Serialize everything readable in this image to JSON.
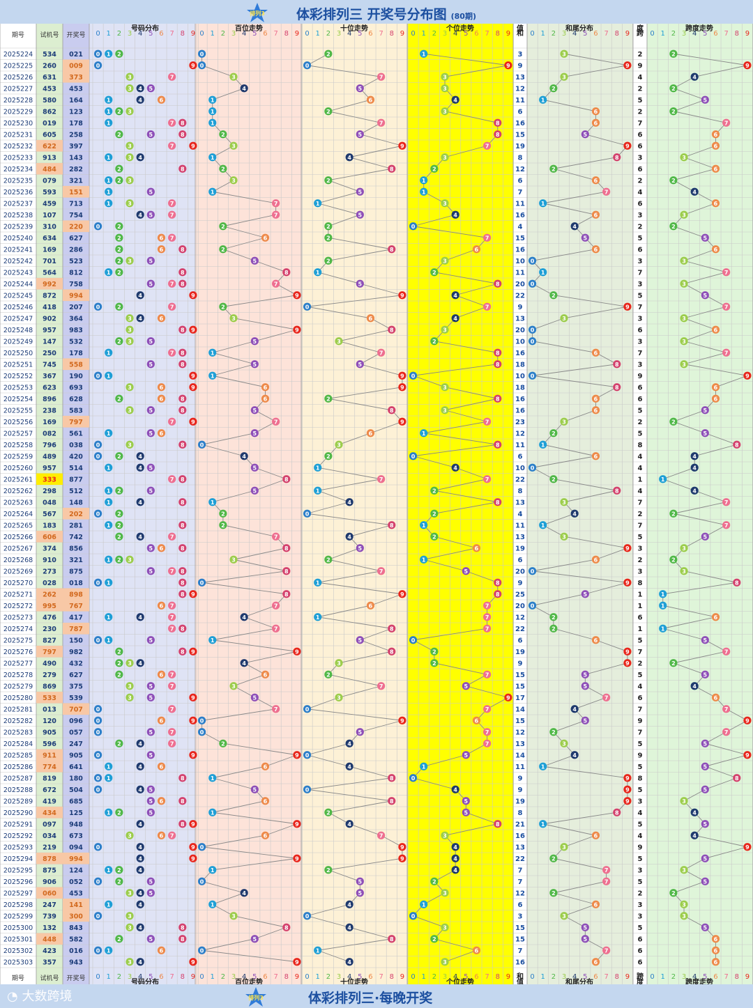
{
  "title": "体彩排列三 开奖号分布图",
  "subtitle": "(80期)",
  "footer_title": "体彩排列三·每晚开奖",
  "watermark": "大数跨境",
  "headers": {
    "issue": "期号",
    "test": "试机号",
    "draw": "开奖号",
    "dist": "号码分布",
    "hundreds": "百位走势",
    "tens": "十位走势",
    "units": "个位走势",
    "sum_a": "和",
    "sum_b": "值",
    "tail": "和尾分布",
    "span_a": "跨",
    "span_b": "度",
    "span": "跨度走势"
  },
  "colors": {
    "panel_dist": "#dfe3f5",
    "panel_hundreds": "#fde3d9",
    "panel_tens": "#fdf1d6",
    "panel_units": "#ffff00",
    "panel_tail": "#e5eedc",
    "panel_span": "#dff5d9",
    "issue_bg": "#ffffff",
    "test_bg": "#dceed0",
    "draw_bg": "#c9ccef",
    "highlight": "#f8c8a6",
    "text_blue": "#1c4fa0"
  },
  "ball_colors": [
    "#2c7fc9",
    "#1e9fd6",
    "#50b848",
    "#9ccd4c",
    "#1f3a6e",
    "#8e4fb8",
    "#ee8a4a",
    "#ee6f90",
    "#d4426e",
    "#e8261c"
  ],
  "chart_data": {
    "type": "table",
    "periods": 80,
    "rows": [
      {
        "issue": "2025224",
        "test": "534",
        "draw": "021",
        "sum": 3,
        "span": 2,
        "hl": ""
      },
      {
        "issue": "2025225",
        "test": "260",
        "draw": "009",
        "sum": 9,
        "span": 9,
        "hl": "draw"
      },
      {
        "issue": "2025226",
        "test": "631",
        "draw": "373",
        "sum": 13,
        "span": 4,
        "hl": "draw"
      },
      {
        "issue": "2025227",
        "test": "453",
        "draw": "453",
        "sum": 12,
        "span": 2,
        "hl": ""
      },
      {
        "issue": "2025228",
        "test": "580",
        "draw": "164",
        "sum": 11,
        "span": 5,
        "hl": ""
      },
      {
        "issue": "2025229",
        "test": "862",
        "draw": "123",
        "sum": 6,
        "span": 2,
        "hl": ""
      },
      {
        "issue": "2025230",
        "test": "019",
        "draw": "178",
        "sum": 16,
        "span": 7,
        "hl": ""
      },
      {
        "issue": "2025231",
        "test": "605",
        "draw": "258",
        "sum": 15,
        "span": 6,
        "hl": ""
      },
      {
        "issue": "2025232",
        "test": "622",
        "draw": "397",
        "sum": 19,
        "span": 6,
        "hl": "test"
      },
      {
        "issue": "2025233",
        "test": "913",
        "draw": "143",
        "sum": 8,
        "span": 3,
        "hl": ""
      },
      {
        "issue": "2025234",
        "test": "484",
        "draw": "282",
        "sum": 12,
        "span": 6,
        "hl": "test"
      },
      {
        "issue": "2025235",
        "test": "079",
        "draw": "321",
        "sum": 6,
        "span": 2,
        "hl": ""
      },
      {
        "issue": "2025236",
        "test": "593",
        "draw": "151",
        "sum": 7,
        "span": 4,
        "hl": "draw"
      },
      {
        "issue": "2025237",
        "test": "459",
        "draw": "713",
        "sum": 11,
        "span": 6,
        "hl": ""
      },
      {
        "issue": "2025238",
        "test": "107",
        "draw": "754",
        "sum": 16,
        "span": 3,
        "hl": ""
      },
      {
        "issue": "2025239",
        "test": "310",
        "draw": "220",
        "sum": 4,
        "span": 2,
        "hl": "draw"
      },
      {
        "issue": "2025240",
        "test": "634",
        "draw": "627",
        "sum": 15,
        "span": 5,
        "hl": ""
      },
      {
        "issue": "2025241",
        "test": "169",
        "draw": "286",
        "sum": 16,
        "span": 6,
        "hl": ""
      },
      {
        "issue": "2025242",
        "test": "701",
        "draw": "523",
        "sum": 10,
        "span": 3,
        "hl": ""
      },
      {
        "issue": "2025243",
        "test": "564",
        "draw": "812",
        "sum": 11,
        "span": 7,
        "hl": ""
      },
      {
        "issue": "2025244",
        "test": "992",
        "draw": "758",
        "sum": 20,
        "span": 3,
        "hl": "test"
      },
      {
        "issue": "2025245",
        "test": "872",
        "draw": "994",
        "sum": 22,
        "span": 5,
        "hl": "draw"
      },
      {
        "issue": "2025246",
        "test": "418",
        "draw": "207",
        "sum": 9,
        "span": 7,
        "hl": ""
      },
      {
        "issue": "2025247",
        "test": "902",
        "draw": "364",
        "sum": 13,
        "span": 3,
        "hl": ""
      },
      {
        "issue": "2025248",
        "test": "957",
        "draw": "983",
        "sum": 20,
        "span": 6,
        "hl": ""
      },
      {
        "issue": "2025249",
        "test": "147",
        "draw": "532",
        "sum": 10,
        "span": 3,
        "hl": ""
      },
      {
        "issue": "2025250",
        "test": "250",
        "draw": "178",
        "sum": 16,
        "span": 7,
        "hl": ""
      },
      {
        "issue": "2025251",
        "test": "745",
        "draw": "558",
        "sum": 18,
        "span": 3,
        "hl": "draw"
      },
      {
        "issue": "2025252",
        "test": "367",
        "draw": "190",
        "sum": 10,
        "span": 9,
        "hl": ""
      },
      {
        "issue": "2025253",
        "test": "623",
        "draw": "693",
        "sum": 18,
        "span": 6,
        "hl": ""
      },
      {
        "issue": "2025254",
        "test": "896",
        "draw": "628",
        "sum": 16,
        "span": 6,
        "hl": ""
      },
      {
        "issue": "2025255",
        "test": "238",
        "draw": "583",
        "sum": 16,
        "span": 5,
        "hl": ""
      },
      {
        "issue": "2025256",
        "test": "169",
        "draw": "797",
        "sum": 23,
        "span": 2,
        "hl": "draw"
      },
      {
        "issue": "2025257",
        "test": "082",
        "draw": "561",
        "sum": 12,
        "span": 5,
        "hl": ""
      },
      {
        "issue": "2025258",
        "test": "796",
        "draw": "038",
        "sum": 11,
        "span": 8,
        "hl": ""
      },
      {
        "issue": "2025259",
        "test": "489",
        "draw": "420",
        "sum": 6,
        "span": 4,
        "hl": ""
      },
      {
        "issue": "2025260",
        "test": "957",
        "draw": "514",
        "sum": 10,
        "span": 4,
        "hl": ""
      },
      {
        "issue": "2025261",
        "test": "333",
        "draw": "877",
        "sum": 22,
        "span": 1,
        "hl": "test-yellow"
      },
      {
        "issue": "2025262",
        "test": "298",
        "draw": "512",
        "sum": 8,
        "span": 4,
        "hl": ""
      },
      {
        "issue": "2025263",
        "test": "048",
        "draw": "148",
        "sum": 13,
        "span": 7,
        "hl": ""
      },
      {
        "issue": "2025264",
        "test": "567",
        "draw": "202",
        "sum": 4,
        "span": 2,
        "hl": "draw"
      },
      {
        "issue": "2025265",
        "test": "183",
        "draw": "281",
        "sum": 11,
        "span": 7,
        "hl": ""
      },
      {
        "issue": "2025266",
        "test": "606",
        "draw": "742",
        "sum": 13,
        "span": 5,
        "hl": "test"
      },
      {
        "issue": "2025267",
        "test": "374",
        "draw": "856",
        "sum": 19,
        "span": 3,
        "hl": ""
      },
      {
        "issue": "2025268",
        "test": "910",
        "draw": "321",
        "sum": 6,
        "span": 2,
        "hl": ""
      },
      {
        "issue": "2025269",
        "test": "273",
        "draw": "875",
        "sum": 20,
        "span": 3,
        "hl": ""
      },
      {
        "issue": "2025270",
        "test": "028",
        "draw": "018",
        "sum": 9,
        "span": 8,
        "hl": ""
      },
      {
        "issue": "2025271",
        "test": "262",
        "draw": "898",
        "sum": 25,
        "span": 1,
        "hl": "both"
      },
      {
        "issue": "2025272",
        "test": "995",
        "draw": "767",
        "sum": 20,
        "span": 1,
        "hl": "both"
      },
      {
        "issue": "2025273",
        "test": "476",
        "draw": "417",
        "sum": 12,
        "span": 6,
        "hl": ""
      },
      {
        "issue": "2025274",
        "test": "230",
        "draw": "787",
        "sum": 22,
        "span": 1,
        "hl": "draw"
      },
      {
        "issue": "2025275",
        "test": "827",
        "draw": "150",
        "sum": 6,
        "span": 5,
        "hl": ""
      },
      {
        "issue": "2025276",
        "test": "797",
        "draw": "982",
        "sum": 19,
        "span": 7,
        "hl": "test"
      },
      {
        "issue": "2025277",
        "test": "490",
        "draw": "432",
        "sum": 9,
        "span": 2,
        "hl": ""
      },
      {
        "issue": "2025278",
        "test": "279",
        "draw": "627",
        "sum": 15,
        "span": 5,
        "hl": ""
      },
      {
        "issue": "2025279",
        "test": "869",
        "draw": "375",
        "sum": 15,
        "span": 4,
        "hl": ""
      },
      {
        "issue": "2025280",
        "test": "533",
        "draw": "539",
        "sum": 17,
        "span": 6,
        "hl": "test"
      },
      {
        "issue": "2025281",
        "test": "013",
        "draw": "707",
        "sum": 14,
        "span": 7,
        "hl": "draw"
      },
      {
        "issue": "2025282",
        "test": "120",
        "draw": "096",
        "sum": 15,
        "span": 9,
        "hl": ""
      },
      {
        "issue": "2025283",
        "test": "905",
        "draw": "057",
        "sum": 12,
        "span": 7,
        "hl": ""
      },
      {
        "issue": "2025284",
        "test": "596",
        "draw": "247",
        "sum": 13,
        "span": 5,
        "hl": ""
      },
      {
        "issue": "2025285",
        "test": "911",
        "draw": "905",
        "sum": 14,
        "span": 9,
        "hl": "test"
      },
      {
        "issue": "2025286",
        "test": "774",
        "draw": "641",
        "sum": 11,
        "span": 5,
        "hl": "test"
      },
      {
        "issue": "2025287",
        "test": "819",
        "draw": "180",
        "sum": 9,
        "span": 8,
        "hl": ""
      },
      {
        "issue": "2025288",
        "test": "672",
        "draw": "504",
        "sum": 9,
        "span": 5,
        "hl": ""
      },
      {
        "issue": "2025289",
        "test": "419",
        "draw": "685",
        "sum": 19,
        "span": 3,
        "hl": ""
      },
      {
        "issue": "2025290",
        "test": "434",
        "draw": "125",
        "sum": 8,
        "span": 4,
        "hl": "test"
      },
      {
        "issue": "2025291",
        "test": "097",
        "draw": "948",
        "sum": 21,
        "span": 5,
        "hl": ""
      },
      {
        "issue": "2025292",
        "test": "034",
        "draw": "673",
        "sum": 16,
        "span": 4,
        "hl": ""
      },
      {
        "issue": "2025293",
        "test": "219",
        "draw": "094",
        "sum": 13,
        "span": 9,
        "hl": ""
      },
      {
        "issue": "2025294",
        "test": "878",
        "draw": "994",
        "sum": 22,
        "span": 5,
        "hl": "both"
      },
      {
        "issue": "2025295",
        "test": "875",
        "draw": "124",
        "sum": 7,
        "span": 3,
        "hl": ""
      },
      {
        "issue": "2025296",
        "test": "906",
        "draw": "052",
        "sum": 7,
        "span": 5,
        "hl": ""
      },
      {
        "issue": "2025297",
        "test": "060",
        "draw": "453",
        "sum": 12,
        "span": 2,
        "hl": "test"
      },
      {
        "issue": "2025298",
        "test": "247",
        "draw": "141",
        "sum": 6,
        "span": 3,
        "hl": "draw"
      },
      {
        "issue": "2025299",
        "test": "739",
        "draw": "300",
        "sum": 3,
        "span": 3,
        "hl": "draw"
      },
      {
        "issue": "2025300",
        "test": "132",
        "draw": "843",
        "sum": 15,
        "span": 5,
        "hl": ""
      },
      {
        "issue": "2025301",
        "test": "448",
        "draw": "582",
        "sum": 15,
        "span": 6,
        "hl": "test"
      },
      {
        "issue": "2025302",
        "test": "423",
        "draw": "016",
        "sum": 7,
        "span": 6,
        "hl": ""
      },
      {
        "issue": "2025303",
        "test": "357",
        "draw": "943",
        "sum": 16,
        "span": 6,
        "hl": ""
      }
    ]
  }
}
